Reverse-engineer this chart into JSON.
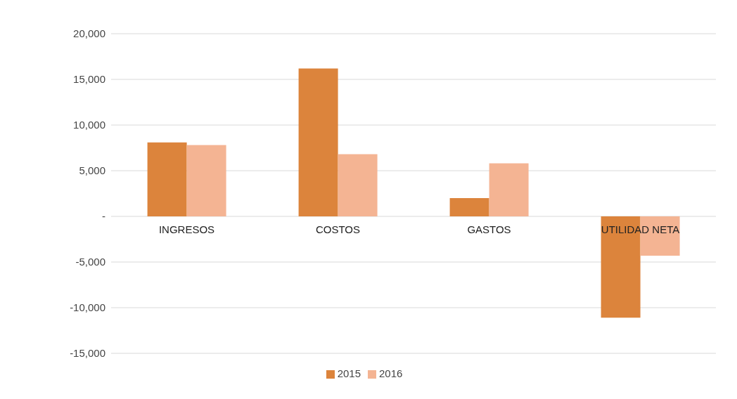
{
  "chart_data": {
    "type": "bar",
    "categories": [
      "INGRESOS",
      "COSTOS",
      "GASTOS",
      "UTILIDAD NETA"
    ],
    "series": [
      {
        "name": "2015",
        "color": "#dc843c",
        "values": [
          8100,
          16200,
          2000,
          -11100
        ]
      },
      {
        "name": "2016",
        "color": "#f4b493",
        "values": [
          7800,
          6800,
          5800,
          -4300
        ]
      }
    ],
    "ylim": [
      -15000,
      20000
    ],
    "yticks": [
      {
        "value": -15000,
        "label": "-15,000"
      },
      {
        "value": -10000,
        "label": "-10,000"
      },
      {
        "value": -5000,
        "label": "-5,000"
      },
      {
        "value": 0,
        "label": "-"
      },
      {
        "value": 5000,
        "label": "5,000"
      },
      {
        "value": 10000,
        "label": "10,000"
      },
      {
        "value": 15000,
        "label": "15,000"
      },
      {
        "value": 20000,
        "label": "20,000"
      }
    ],
    "grid": "y",
    "legend": "bottom"
  }
}
